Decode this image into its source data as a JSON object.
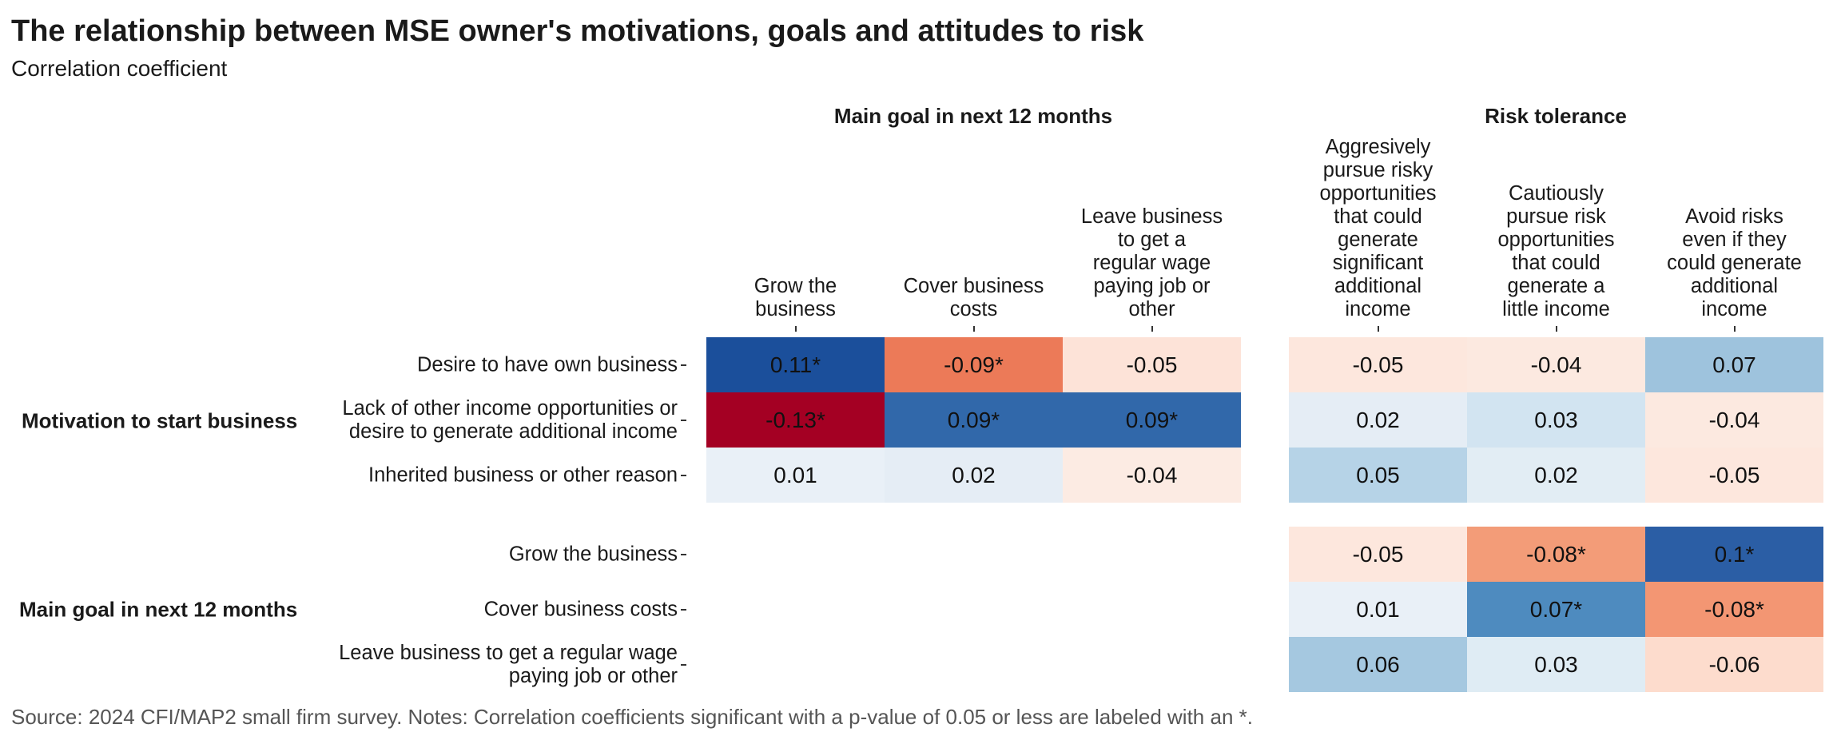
{
  "header": {
    "title": "The relationship between MSE owner's motivations, goals and attitudes to risk",
    "subtitle": "Correlation coefficient"
  },
  "footer": {
    "source": "Source: 2024 CFI/MAP2 small firm survey. Notes: Correlation coefficients significant with a p-value of 0.05 or less are labeled with an *."
  },
  "chart_data": {
    "type": "heatmap",
    "title": "The relationship between MSE owner's motivations, goals and attitudes to risk",
    "subtitle": "Correlation coefficient",
    "color_scale": {
      "type": "diverging",
      "low_color": "#a50026",
      "mid_color": "#f7f7f7",
      "high_color": "#1a4f9c",
      "domain": [
        -0.13,
        0.13
      ]
    },
    "significance_marker": "*",
    "column_groups": [
      {
        "name": "Main goal in next 12 months",
        "columns": [
          "Grow the business",
          "Cover business costs",
          "Leave business to get a regular wage paying job or other"
        ]
      },
      {
        "name": "Risk tolerance",
        "columns": [
          "Aggresively pursue risky opportunities that could generate significant additional income",
          "Cautiously pursue risk opportunities that could generate a little income",
          "Avoid risks even if they could generate additional income"
        ]
      }
    ],
    "row_groups": [
      {
        "name": "Motivation to start business",
        "rows": [
          {
            "label": "Desire to have own business",
            "values": [
              [
                0.11,
                -0.09,
                -0.05
              ],
              [
                -0.05,
                -0.04,
                0.07
              ]
            ],
            "significant": [
              [
                true,
                true,
                false
              ],
              [
                false,
                false,
                false
              ]
            ],
            "colors": [
              [
                "#1b4f9b",
                "#ec7a58",
                "#fde3d8"
              ],
              [
                "#fde7dd",
                "#fce9e0",
                "#9ec3dd"
              ]
            ]
          },
          {
            "label": "Lack of other income opportunities or desire to generate additional income",
            "values": [
              [
                -0.13,
                0.09,
                0.09
              ],
              [
                0.02,
                0.03,
                -0.04
              ]
            ],
            "significant": [
              [
                true,
                true,
                true
              ],
              [
                false,
                false,
                false
              ]
            ],
            "colors": [
              [
                "#a40023",
                "#3168aa",
                "#3168aa"
              ],
              [
                "#e5edf5",
                "#d2e4f1",
                "#fce9e0"
              ]
            ]
          },
          {
            "label": "Inherited business or other reason",
            "values": [
              [
                0.01,
                0.02,
                -0.04
              ],
              [
                0.05,
                0.02,
                -0.05
              ]
            ],
            "significant": [
              [
                false,
                false,
                false
              ],
              [
                false,
                false,
                false
              ]
            ],
            "colors": [
              [
                "#e9f0f7",
                "#e5edf5",
                "#fcebe3"
              ],
              [
                "#b6d3e7",
                "#e2edf4",
                "#fde7dd"
              ]
            ]
          }
        ]
      },
      {
        "name": "Main goal in next 12 months",
        "rows": [
          {
            "label": "Grow the business",
            "values": [
              null,
              [
                -0.05,
                -0.08,
                0.1
              ]
            ],
            "significant": [
              null,
              [
                false,
                true,
                true
              ]
            ],
            "colors": [
              null,
              [
                "#fde7dd",
                "#f39c78",
                "#2b5ea5"
              ]
            ]
          },
          {
            "label": "Cover business costs",
            "values": [
              null,
              [
                0.01,
                0.07,
                -0.08
              ]
            ],
            "significant": [
              null,
              [
                false,
                true,
                true
              ]
            ],
            "colors": [
              null,
              [
                "#e9f0f7",
                "#4e8bbf",
                "#f39673"
              ]
            ]
          },
          {
            "label": "Leave business to get a regular wage paying job or other",
            "values": [
              null,
              [
                0.06,
                0.03,
                -0.06
              ]
            ],
            "significant": [
              null,
              [
                false,
                false,
                false
              ]
            ],
            "colors": [
              null,
              [
                "#a5c8e0",
                "#dfecf4",
                "#fddccd"
              ]
            ]
          }
        ]
      }
    ],
    "column_header_lines": [
      [
        "Grow the",
        "business"
      ],
      [
        "Cover business",
        "costs"
      ],
      [
        "Leave business",
        "to get a",
        "regular wage",
        "paying job or",
        "other"
      ],
      [
        "Aggresively",
        "pursue risky",
        "opportunities",
        "that could",
        "generate",
        "significant",
        "additional",
        "income"
      ],
      [
        "Cautiously",
        "pursue risk",
        "opportunities",
        "that could",
        "generate a",
        "little income"
      ],
      [
        "Avoid risks",
        "even if they",
        "could generate",
        "additional",
        "income"
      ]
    ],
    "row_label_lines": [
      [
        "Desire to have own business"
      ],
      [
        "Lack of other income opportunities or",
        "desire to generate additional income"
      ],
      [
        "Inherited business or other reason"
      ],
      [
        "Grow the business"
      ],
      [
        "Cover business costs"
      ],
      [
        "Leave business to get a regular wage",
        "paying job or other"
      ]
    ],
    "grid": false,
    "legend": "none"
  }
}
